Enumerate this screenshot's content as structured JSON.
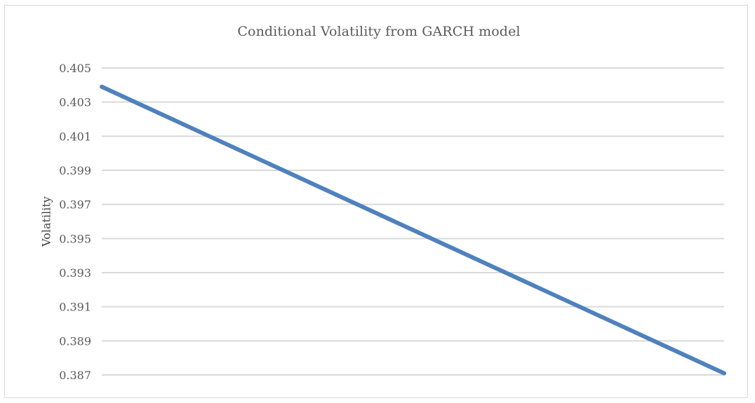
{
  "chart_data": {
    "type": "line",
    "title": "Conditional Volatility from GARCH model",
    "xlabel": "",
    "ylabel": "Volatility",
    "ylim": [
      0.387,
      0.405
    ],
    "yticks": [
      "0.387",
      "0.389",
      "0.391",
      "0.393",
      "0.395",
      "0.397",
      "0.399",
      "0.401",
      "0.403",
      "0.405"
    ],
    "grid": true,
    "legend": "none",
    "series": [
      {
        "values": [
          0.4039,
          0.3871
        ],
        "color": "#4f81bd"
      }
    ]
  }
}
